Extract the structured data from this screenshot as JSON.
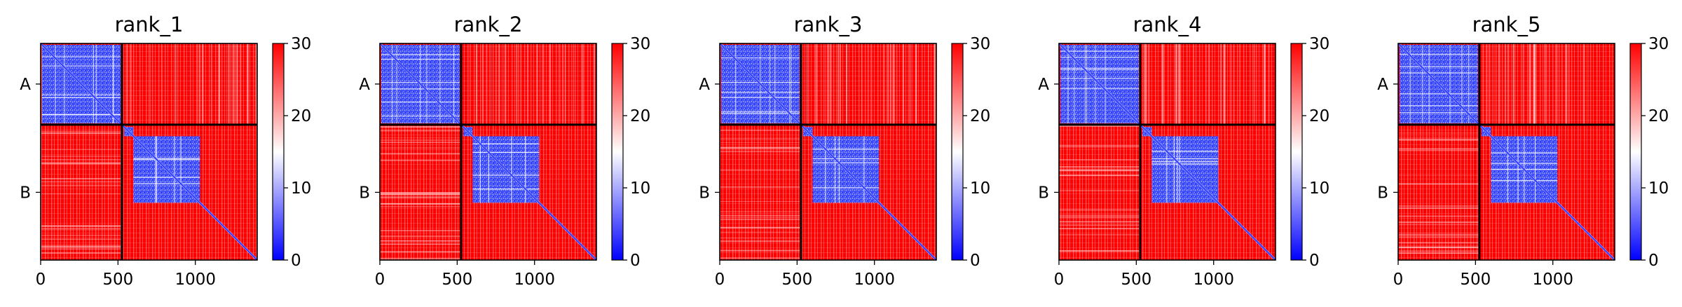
{
  "chart_data": [
    {
      "type": "heatmap",
      "title": "rank_1",
      "matrix_size": 1400,
      "chain_boundary": 525,
      "x_ticks": [
        0,
        500,
        1000
      ],
      "x_tick_labels": [
        "0",
        "500",
        "1000"
      ],
      "y_chains": [
        "A",
        "B"
      ],
      "colorbar": {
        "min": 0,
        "max": 30,
        "ticks": [
          0,
          10,
          20,
          30
        ],
        "tick_labels": [
          "0",
          "10",
          "20",
          "30"
        ],
        "colormap": "bwr"
      }
    },
    {
      "type": "heatmap",
      "title": "rank_2",
      "matrix_size": 1400,
      "chain_boundary": 525,
      "x_ticks": [
        0,
        500,
        1000
      ],
      "x_tick_labels": [
        "0",
        "500",
        "1000"
      ],
      "y_chains": [
        "A",
        "B"
      ],
      "colorbar": {
        "min": 0,
        "max": 30,
        "ticks": [
          0,
          10,
          20,
          30
        ],
        "tick_labels": [
          "0",
          "10",
          "20",
          "30"
        ],
        "colormap": "bwr"
      }
    },
    {
      "type": "heatmap",
      "title": "rank_3",
      "matrix_size": 1400,
      "chain_boundary": 525,
      "x_ticks": [
        0,
        500,
        1000
      ],
      "x_tick_labels": [
        "0",
        "500",
        "1000"
      ],
      "y_chains": [
        "A",
        "B"
      ],
      "colorbar": {
        "min": 0,
        "max": 30,
        "ticks": [
          0,
          10,
          20,
          30
        ],
        "tick_labels": [
          "0",
          "10",
          "20",
          "30"
        ],
        "colormap": "bwr"
      }
    },
    {
      "type": "heatmap",
      "title": "rank_4",
      "matrix_size": 1400,
      "chain_boundary": 525,
      "x_ticks": [
        0,
        500,
        1000
      ],
      "x_tick_labels": [
        "0",
        "500",
        "1000"
      ],
      "y_chains": [
        "A",
        "B"
      ],
      "colorbar": {
        "min": 0,
        "max": 30,
        "ticks": [
          0,
          10,
          20,
          30
        ],
        "tick_labels": [
          "0",
          "10",
          "20",
          "30"
        ],
        "colormap": "bwr"
      }
    },
    {
      "type": "heatmap",
      "title": "rank_5",
      "matrix_size": 1400,
      "chain_boundary": 525,
      "x_ticks": [
        0,
        500,
        1000
      ],
      "x_tick_labels": [
        "0",
        "500",
        "1000"
      ],
      "y_chains": [
        "A",
        "B"
      ],
      "colorbar": {
        "min": 0,
        "max": 30,
        "ticks": [
          0,
          10,
          20,
          30
        ],
        "tick_labels": [
          "0",
          "10",
          "20",
          "30"
        ],
        "colormap": "bwr"
      }
    }
  ],
  "colors": {
    "low": "#0000ff",
    "mid": "#ffffff",
    "high": "#ff0000",
    "frame": "#000000"
  }
}
